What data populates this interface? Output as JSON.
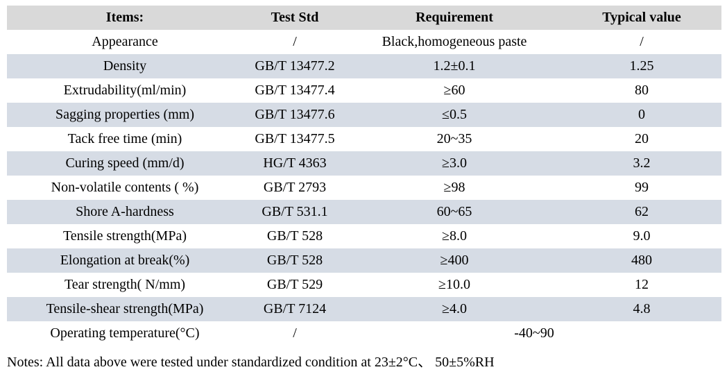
{
  "table": {
    "columns": [
      "Items:",
      "Test Std",
      "Requirement",
      "Typical value"
    ],
    "rows": [
      {
        "item": "Appearance",
        "test_std": "/",
        "requirement": "Black,homogeneous paste",
        "typical_value": "/"
      },
      {
        "item": "Density",
        "test_std": "GB/T 13477.2",
        "requirement": "1.2±0.1",
        "typical_value": "1.25"
      },
      {
        "item": "Extrudability(ml/min)",
        "test_std": "GB/T 13477.4",
        "requirement": "≥60",
        "typical_value": "80"
      },
      {
        "item": "Sagging properties (mm)",
        "test_std": "GB/T 13477.6",
        "requirement": "≤0.5",
        "typical_value": "0"
      },
      {
        "item": "Tack free time (min)",
        "test_std": "GB/T 13477.5",
        "requirement": "20~35",
        "typical_value": "20"
      },
      {
        "item": "Curing speed (mm/d)",
        "test_std": "HG/T 4363",
        "requirement": "≥3.0",
        "typical_value": "3.2"
      },
      {
        "item": "Non-volatile contents ( %)",
        "test_std": "GB/T 2793",
        "requirement": "≥98",
        "typical_value": "99"
      },
      {
        "item": "Shore A-hardness",
        "test_std": "GB/T 531.1",
        "requirement": "60~65",
        "typical_value": "62"
      },
      {
        "item": "Tensile strength(MPa)",
        "test_std": "GB/T 528",
        "requirement": "≥8.0",
        "typical_value": "9.0"
      },
      {
        "item": "Elongation at break(%)",
        "test_std": "GB/T 528",
        "requirement": "≥400",
        "typical_value": "480"
      },
      {
        "item": "Tear strength( N/mm)",
        "test_std": "GB/T 529",
        "requirement": "≥10.0",
        "typical_value": "12"
      },
      {
        "item": "Tensile-shear strength(MPa)",
        "test_std": "GB/T 7124",
        "requirement": "≥4.0",
        "typical_value": "4.8"
      },
      {
        "item": "Operating temperature(°C)",
        "test_std": "/",
        "requirement": "-40~90",
        "merge_requirement": true
      }
    ]
  },
  "notes": "Notes: All data above were tested under standardized condition at 23±2°C、 50±5%RH",
  "colors": {
    "header_bg": "#d9d9d9",
    "stripe_bg": "#d6dce5",
    "row_bg": "#ffffff",
    "text": "#000000"
  }
}
